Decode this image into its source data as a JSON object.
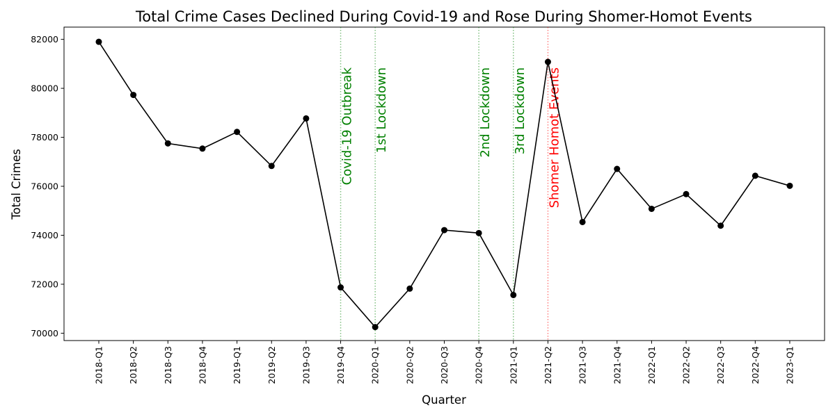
{
  "chart_data": {
    "type": "line",
    "title": "Total Crime Cases Declined During Covid-19 and Rose During Shomer-Homot Events",
    "xlabel": "Quarter",
    "ylabel": "Total Crimes",
    "ylim": [
      69700,
      82500
    ],
    "yticks": [
      70000,
      72000,
      74000,
      76000,
      78000,
      80000,
      82000
    ],
    "categories": [
      "2018-Q1",
      "2018-Q2",
      "2018-Q3",
      "2018-Q4",
      "2019-Q1",
      "2019-Q2",
      "2019-Q3",
      "2019-Q4",
      "2020-Q1",
      "2020-Q2",
      "2020-Q3",
      "2020-Q4",
      "2021-Q1",
      "2021-Q2",
      "2021-Q3",
      "2021-Q4",
      "2022-Q1",
      "2022-Q2",
      "2022-Q3",
      "2022-Q4",
      "2023-Q1"
    ],
    "series": [
      {
        "values": [
          81900,
          79730,
          77750,
          77540,
          78220,
          76830,
          78770,
          71870,
          70250,
          71820,
          74210,
          74090,
          71560,
          81080,
          74540,
          76710,
          75080,
          75680,
          74390,
          76430,
          76020
        ],
        "color": "#000000",
        "marker": "circle"
      }
    ],
    "events": [
      {
        "label": "Covid-19 Outbreak",
        "category": "2019-Q4",
        "color": "#008000",
        "line_style": "dotted"
      },
      {
        "label": "1st Lockdown",
        "category": "2020-Q1",
        "color": "#008000",
        "line_style": "dotted"
      },
      {
        "label": "2nd Lockdown",
        "category": "2020-Q4",
        "color": "#008000",
        "line_style": "dotted"
      },
      {
        "label": "3rd Lockdown",
        "category": "2021-Q1",
        "color": "#008000",
        "line_style": "dotted"
      },
      {
        "label": "Shomer Homot Events",
        "category": "2021-Q2",
        "color": "#ff0000",
        "line_style": "dotted"
      }
    ],
    "grid": false,
    "legend": "none"
  }
}
